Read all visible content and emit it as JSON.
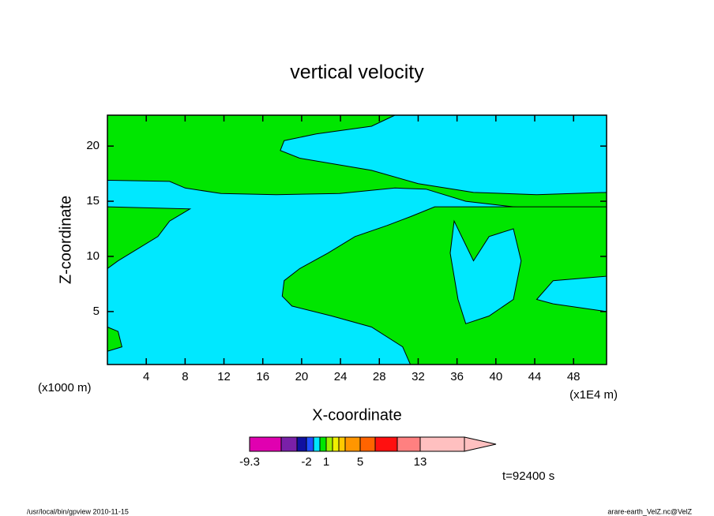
{
  "chart_data": {
    "type": "contour",
    "title": "vertical velocity",
    "xlabel": "X-coordinate",
    "ylabel": "Z-coordinate",
    "x_unit_label": "(x1E4 m)",
    "y_unit_label": "(x1000 m)",
    "xlim": [
      0,
      51.4
    ],
    "ylim": [
      0.2,
      22.8
    ],
    "xticks": [
      4,
      8,
      12,
      16,
      20,
      24,
      28,
      32,
      36,
      40,
      44,
      48
    ],
    "yticks": [
      5,
      10,
      15,
      20
    ],
    "background_color": "#00e8ff",
    "regions": [
      {
        "color": "#00e600",
        "x": [
          0,
          29.6,
          27.2,
          21.5,
          18.2,
          17.8,
          19.8,
          27.2,
          32.0,
          37.7,
          44.2,
          51.4,
          51.4,
          45.9,
          41.8,
          36.9,
          32.8,
          29.6,
          23.9,
          17.4,
          11.7,
          8.0,
          6.4,
          0.3,
          0
        ],
        "y": [
          22.8,
          22.8,
          21.8,
          21.1,
          20.5,
          19.6,
          18.9,
          17.8,
          16.6,
          15.8,
          15.6,
          15.8,
          14.2,
          14.2,
          14.5,
          15.0,
          16.1,
          16.2,
          15.7,
          15.6,
          15.7,
          16.2,
          16.8,
          16.9,
          16.9
        ]
      },
      {
        "color": "#00e600",
        "x": [
          0,
          8.5,
          6.4,
          5.2,
          1.1,
          0
        ],
        "y": [
          14.5,
          14.3,
          13.2,
          11.8,
          9.6,
          8.9
        ]
      },
      {
        "color": "#00e600",
        "x": [
          18.2,
          19.8,
          22.7,
          25.5,
          28.8,
          31.2,
          33.7,
          51.4,
          51.4,
          45.9,
          44.2,
          45.9,
          51.4,
          51.4,
          31.2,
          30.4,
          27.2,
          23.1,
          19.0,
          18.0
        ],
        "y": [
          7.8,
          8.9,
          10.3,
          11.8,
          12.8,
          13.6,
          14.5,
          14.5,
          8.2,
          7.8,
          6.1,
          5.7,
          5.0,
          0.2,
          0.2,
          1.8,
          3.6,
          4.6,
          5.5,
          6.4
        ]
      },
      {
        "color": "#00e8ff",
        "x": [
          35.7,
          37.7,
          39.3,
          41.8,
          42.6,
          41.8,
          39.3,
          36.9,
          36.1,
          35.3
        ],
        "y": [
          13.2,
          9.6,
          11.8,
          12.5,
          9.6,
          6.1,
          4.6,
          3.9,
          6.1,
          10.3
        ]
      },
      {
        "color": "#00e600",
        "x": [
          0,
          1.1,
          1.5,
          0
        ],
        "y": [
          3.6,
          3.2,
          1.8,
          1.4
        ]
      }
    ],
    "colorbar": {
      "levels": [
        -9.3,
        -6,
        -4,
        -2,
        -1,
        0,
        1,
        2,
        3,
        4,
        5,
        7,
        10,
        13
      ],
      "colors": [
        "#e000b0",
        "#7a20a8",
        "#1010a0",
        "#2050ff",
        "#00e8ff",
        "#00e600",
        "#a0f000",
        "#f0f000",
        "#ffc800",
        "#ff9600",
        "#ff6400",
        "#ff1010",
        "#ff8080",
        "#ffc0c0"
      ],
      "ticks": [
        -9.3,
        -2,
        1,
        5,
        13
      ]
    },
    "time_label": "t=92400 s",
    "footer_left": "/usr/local/bin/gpview  2010-11-15",
    "footer_right": "arare-earth_VelZ.nc@VelZ"
  }
}
